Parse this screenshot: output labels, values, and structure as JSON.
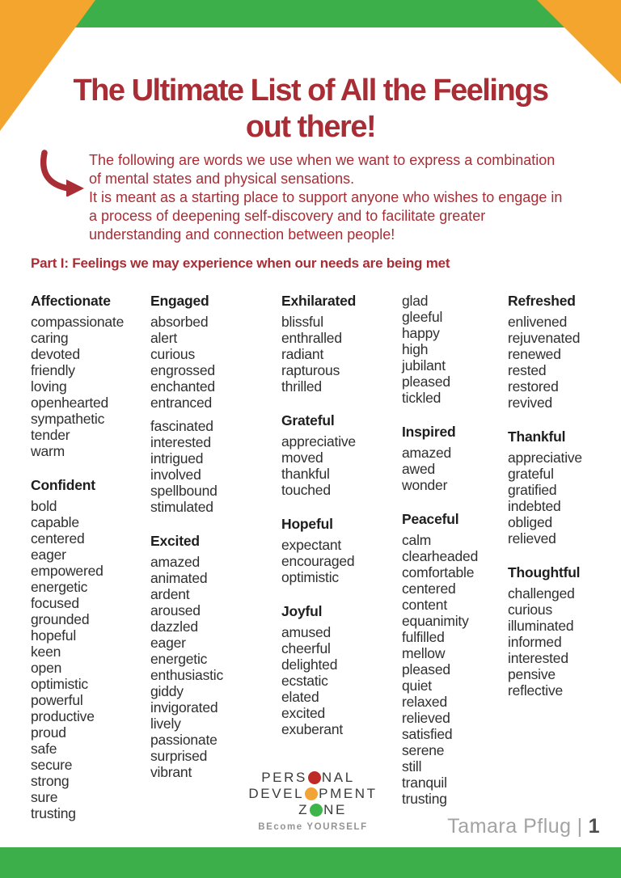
{
  "header": {
    "title_line1": "The Ultimate List of All the Feelings",
    "title_line2": "out there!"
  },
  "intro": {
    "lines": [
      "The following are words we use when we want to express a combination",
      "of mental states and physical sensations.",
      "It is meant as a starting place to support anyone who wishes to engage in",
      "a process of deepening self-discovery and to facilitate greater",
      "understanding and connection between people!"
    ]
  },
  "part_heading": "Part I: Feelings we may experience when our needs are being met",
  "columns": [
    {
      "groups": [
        {
          "header": "Affectionate",
          "items": [
            "compassionate",
            "caring",
            "devoted",
            "friendly",
            "loving",
            "openhearted",
            "sympathetic",
            "tender",
            "warm"
          ]
        },
        {
          "header": "Confident",
          "items": [
            "bold",
            "capable",
            "centered",
            "eager",
            "empowered",
            "energetic",
            "focused",
            "grounded",
            "hopeful",
            "keen",
            "open",
            "optimistic",
            "powerful",
            "productive",
            "proud",
            "safe",
            "secure",
            "strong",
            "sure",
            "trusting"
          ]
        }
      ]
    },
    {
      "groups": [
        {
          "header": "Engaged",
          "items": [
            "absorbed",
            "alert",
            "curious",
            "engrossed",
            "enchanted",
            "entranced",
            "",
            "fascinated",
            "interested",
            "intrigued",
            "involved",
            "spellbound",
            "stimulated"
          ]
        },
        {
          "header": "Excited",
          "items": [
            "amazed",
            "animated",
            "ardent",
            "aroused",
            "dazzled",
            "eager",
            "energetic",
            "enthusiastic",
            "giddy",
            "invigorated",
            "lively",
            "passionate",
            "surprised",
            "vibrant"
          ]
        }
      ]
    },
    {
      "groups": [
        {
          "header": "Exhilarated",
          "items": [
            "blissful",
            "enthralled",
            "radiant",
            "rapturous",
            "thrilled"
          ]
        },
        {
          "header": "Grateful",
          "items": [
            "appreciative",
            "moved",
            "thankful",
            "touched"
          ]
        },
        {
          "header": "Hopeful",
          "items": [
            "expectant",
            "encouraged",
            "optimistic"
          ]
        },
        {
          "header": "Joyful",
          "items": [
            "amused",
            "cheerful",
            "delighted",
            "ecstatic",
            "elated",
            "excited",
            "exuberant"
          ]
        }
      ]
    },
    {
      "groups": [
        {
          "header": "",
          "items": [
            "glad",
            "gleeful",
            "happy",
            "high",
            "jubilant",
            "pleased",
            "tickled"
          ]
        },
        {
          "header": "Inspired",
          "items": [
            "amazed",
            "awed",
            "wonder"
          ]
        },
        {
          "header": "Peaceful",
          "items": [
            "calm",
            "clearheaded",
            "comfortable",
            "centered",
            "content",
            "equanimity",
            "fulfilled",
            "mellow",
            "pleased",
            "quiet",
            "relaxed",
            "relieved",
            "satisfied",
            "serene",
            "still",
            "tranquil",
            "trusting"
          ]
        }
      ]
    },
    {
      "groups": [
        {
          "header": "Refreshed",
          "items": [
            "enlivened",
            "rejuvenated",
            "renewed",
            "rested",
            "restored",
            "revived"
          ]
        },
        {
          "header": "Thankful",
          "items": [
            "appreciative",
            "grateful",
            "gratified",
            "indebted",
            "obliged",
            "relieved"
          ]
        },
        {
          "header": "Thoughtful",
          "items": [
            "challenged",
            "curious",
            "illuminated",
            "informed",
            "interested",
            "pensive",
            "reflective"
          ]
        }
      ]
    }
  ],
  "logo": {
    "line1_pre": "PERS",
    "line1_post": "NAL",
    "line2_pre": "DEVEL",
    "line2_post": "PMENT",
    "line3_pre": "Z",
    "line3_post": "NE",
    "tagline": "BEcome YOURSELF"
  },
  "footer": {
    "author": "Tamara Pflug",
    "separator": "|",
    "page_number": "1"
  },
  "colors": {
    "green": "#3cae4a",
    "orange": "#f4a52e",
    "red": "#a82d35",
    "text": "#2f2f2f",
    "footer_gray": "#a3a3a3",
    "logo_red": "#bf2a27",
    "logo_orange": "#f2a335",
    "logo_green": "#3db54a"
  },
  "icons": {
    "arrow": "curved-arrow-down-right",
    "traffic_lights": [
      "red-light",
      "orange-light",
      "green-light"
    ]
  }
}
